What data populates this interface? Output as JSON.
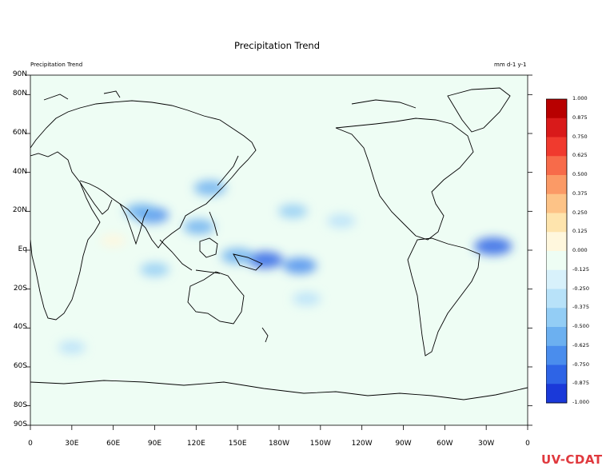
{
  "chart_data": {
    "type": "heatmap",
    "title": "Precipitation Trend",
    "left_label": "Precipitation Trend",
    "units": "mm d-1 y-1",
    "x_axis": {
      "ticks": [
        "0",
        "30E",
        "60E",
        "90E",
        "120E",
        "150E",
        "180W",
        "150W",
        "120W",
        "90W",
        "60W",
        "30W",
        "0"
      ],
      "lim": [
        0,
        360
      ]
    },
    "y_axis": {
      "ticks": [
        "90S",
        "80S",
        "60S",
        "40S",
        "20S",
        "Eq",
        "20N",
        "40N",
        "60N",
        "80N",
        "90N"
      ],
      "values": [
        -90,
        -80,
        -60,
        -40,
        -20,
        0,
        20,
        40,
        60,
        80,
        90
      ],
      "lim": [
        -90,
        90
      ]
    },
    "colorbar": {
      "levels": [
        "1.000",
        "0.875",
        "0.750",
        "0.625",
        "0.500",
        "0.375",
        "0.250",
        "0.125",
        "0.000",
        "-0.125",
        "-0.250",
        "-0.375",
        "-0.500",
        "-0.625",
        "-0.750",
        "-0.875",
        "-1.000"
      ],
      "colors": [
        "#b80000",
        "#d91a1a",
        "#f03a2e",
        "#f76b4a",
        "#fb9a66",
        "#fdc387",
        "#fee4ad",
        "#fff7dd",
        "#eefdf4",
        "#d8f1fb",
        "#b8e2f9",
        "#93cdf5",
        "#6cb0f0",
        "#4a8ded",
        "#2e64e6",
        "#1a39d9",
        "#0a14cc"
      ]
    },
    "field": {
      "background": "#eefdf4",
      "features": [
        {
          "lon": 170,
          "lat": -5,
          "value": -0.7
        },
        {
          "lon": 150,
          "lat": -3,
          "value": -0.55
        },
        {
          "lon": 195,
          "lat": -8,
          "value": -0.6
        },
        {
          "lon": 88,
          "lat": 18,
          "value": -0.6
        },
        {
          "lon": 80,
          "lat": 20,
          "value": -0.5
        },
        {
          "lon": 130,
          "lat": 32,
          "value": -0.5
        },
        {
          "lon": 122,
          "lat": 12,
          "value": -0.45
        },
        {
          "lon": 335,
          "lat": 2,
          "value": -0.8
        },
        {
          "lon": 190,
          "lat": 20,
          "value": -0.35
        },
        {
          "lon": 225,
          "lat": 15,
          "value": -0.3
        },
        {
          "lon": 200,
          "lat": -25,
          "value": -0.3
        },
        {
          "lon": 60,
          "lat": 5,
          "value": 0.15
        },
        {
          "lon": 90,
          "lat": -10,
          "value": -0.35
        },
        {
          "lon": 30,
          "lat": -50,
          "value": -0.25
        }
      ]
    }
  },
  "logo": {
    "text": "UV-CDAT",
    "colors": [
      "#e0393e",
      "#f08a24",
      "#1e88e5",
      "#43a047",
      "#8e24aa"
    ]
  }
}
